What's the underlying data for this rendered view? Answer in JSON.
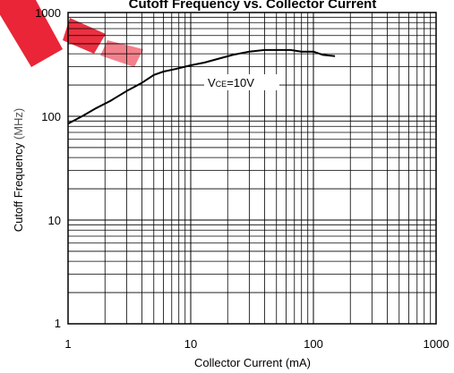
{
  "watermark": {
    "brand_color": "#e8192c"
  },
  "chart_data": {
    "type": "line",
    "title": "Cutoff Frequency vs. Collector Current",
    "xlabel": "Collector Current (mA)",
    "ylabel": "Cutoff Frequency",
    "ylabel_unit": "(MHz)",
    "xscale": "log",
    "yscale": "log",
    "xlim": [
      1,
      1000
    ],
    "ylim": [
      1,
      1000
    ],
    "grid": true,
    "x_tick_labels": [
      "1",
      "10",
      "100",
      "1000"
    ],
    "y_tick_labels": [
      "1",
      "10",
      "100",
      "1000"
    ],
    "annotation": {
      "prefix": "V",
      "subscript": "CE",
      "suffix": "=10V"
    },
    "series": [
      {
        "x": [
          1.0,
          1.3,
          1.7,
          2.2,
          3.0,
          4.0,
          5.0,
          6.0,
          7.5,
          10,
          13,
          17,
          22,
          30,
          40,
          50,
          65,
          80,
          100,
          120,
          150
        ],
        "y": [
          85,
          100,
          120,
          140,
          175,
          210,
          250,
          270,
          285,
          310,
          330,
          360,
          390,
          420,
          435,
          435,
          435,
          420,
          420,
          390,
          380
        ],
        "color": "#000000"
      }
    ]
  }
}
